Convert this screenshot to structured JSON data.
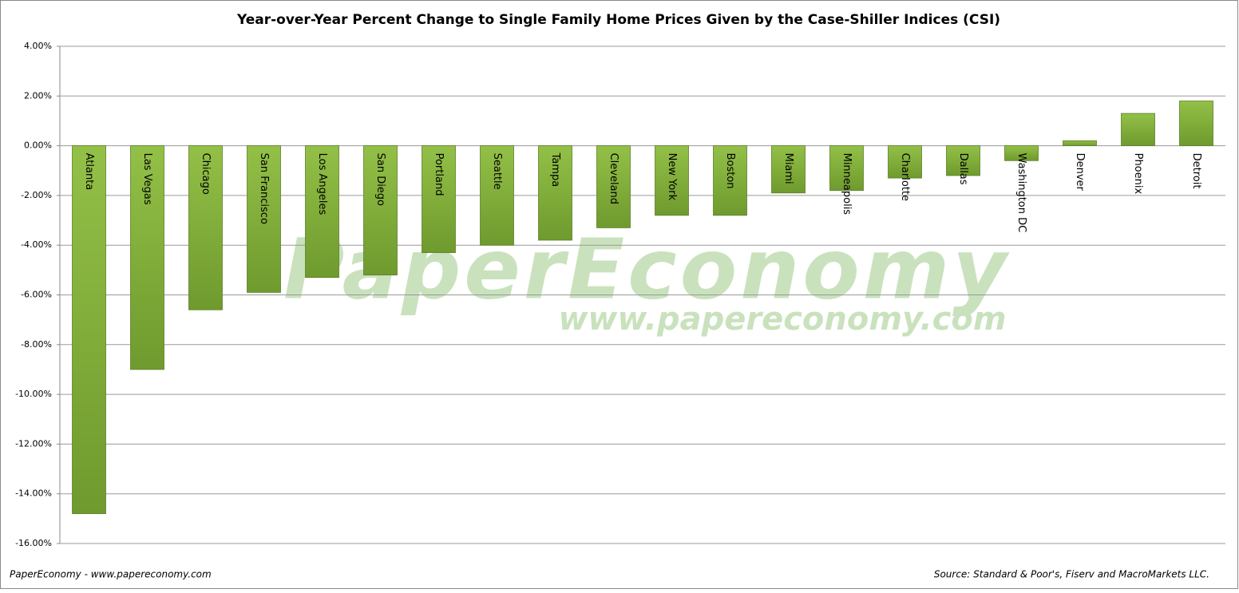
{
  "chart_data": {
    "type": "bar",
    "title": "Year-over-Year Percent Change to Single Family Home Prices Given by the Case-Shiller Indices (CSI)",
    "categories": [
      "Atlanta",
      "Las Vegas",
      "Chicago",
      "San Francisco",
      "Los Angeles",
      "San Diego",
      "Portland",
      "Seattle",
      "Tampa",
      "Cleveland",
      "New York",
      "Boston",
      "Miami",
      "Minneapolis",
      "Charlotte",
      "Dallas",
      "Washington DC",
      "Denver",
      "Phoenix",
      "Detroit"
    ],
    "values": [
      -14.8,
      -9.0,
      -6.6,
      -5.9,
      -5.3,
      -5.2,
      -4.3,
      -4.0,
      -3.8,
      -3.3,
      -2.8,
      -2.8,
      -1.9,
      -1.8,
      -1.3,
      -1.2,
      -0.6,
      0.2,
      1.3,
      1.8
    ],
    "color": "#93c047",
    "ylim": [
      -16,
      4
    ],
    "yticks": [
      {
        "value": -16,
        "label": "-16.00%"
      },
      {
        "value": -14,
        "label": "-14.00%"
      },
      {
        "value": -12,
        "label": "-12.00%"
      },
      {
        "value": -10,
        "label": "-10.00%"
      },
      {
        "value": -8,
        "label": "-8.00%"
      },
      {
        "value": -6,
        "label": "-6.00%"
      },
      {
        "value": -4,
        "label": "-4.00%"
      },
      {
        "value": -2,
        "label": "-2.00%"
      },
      {
        "value": 0,
        "label": "0.00%"
      },
      {
        "value": 2,
        "label": "2.00%"
      },
      {
        "value": 4,
        "label": "4.00%"
      }
    ],
    "grid": true,
    "watermark": [
      "PaperEconomy",
      "www.papereconomy.com"
    ],
    "footer_left": "PaperEconomy - www.papereconomy.com",
    "footer_right": "Source: Standard & Poor's, Fiserv and MacroMarkets LLC."
  }
}
